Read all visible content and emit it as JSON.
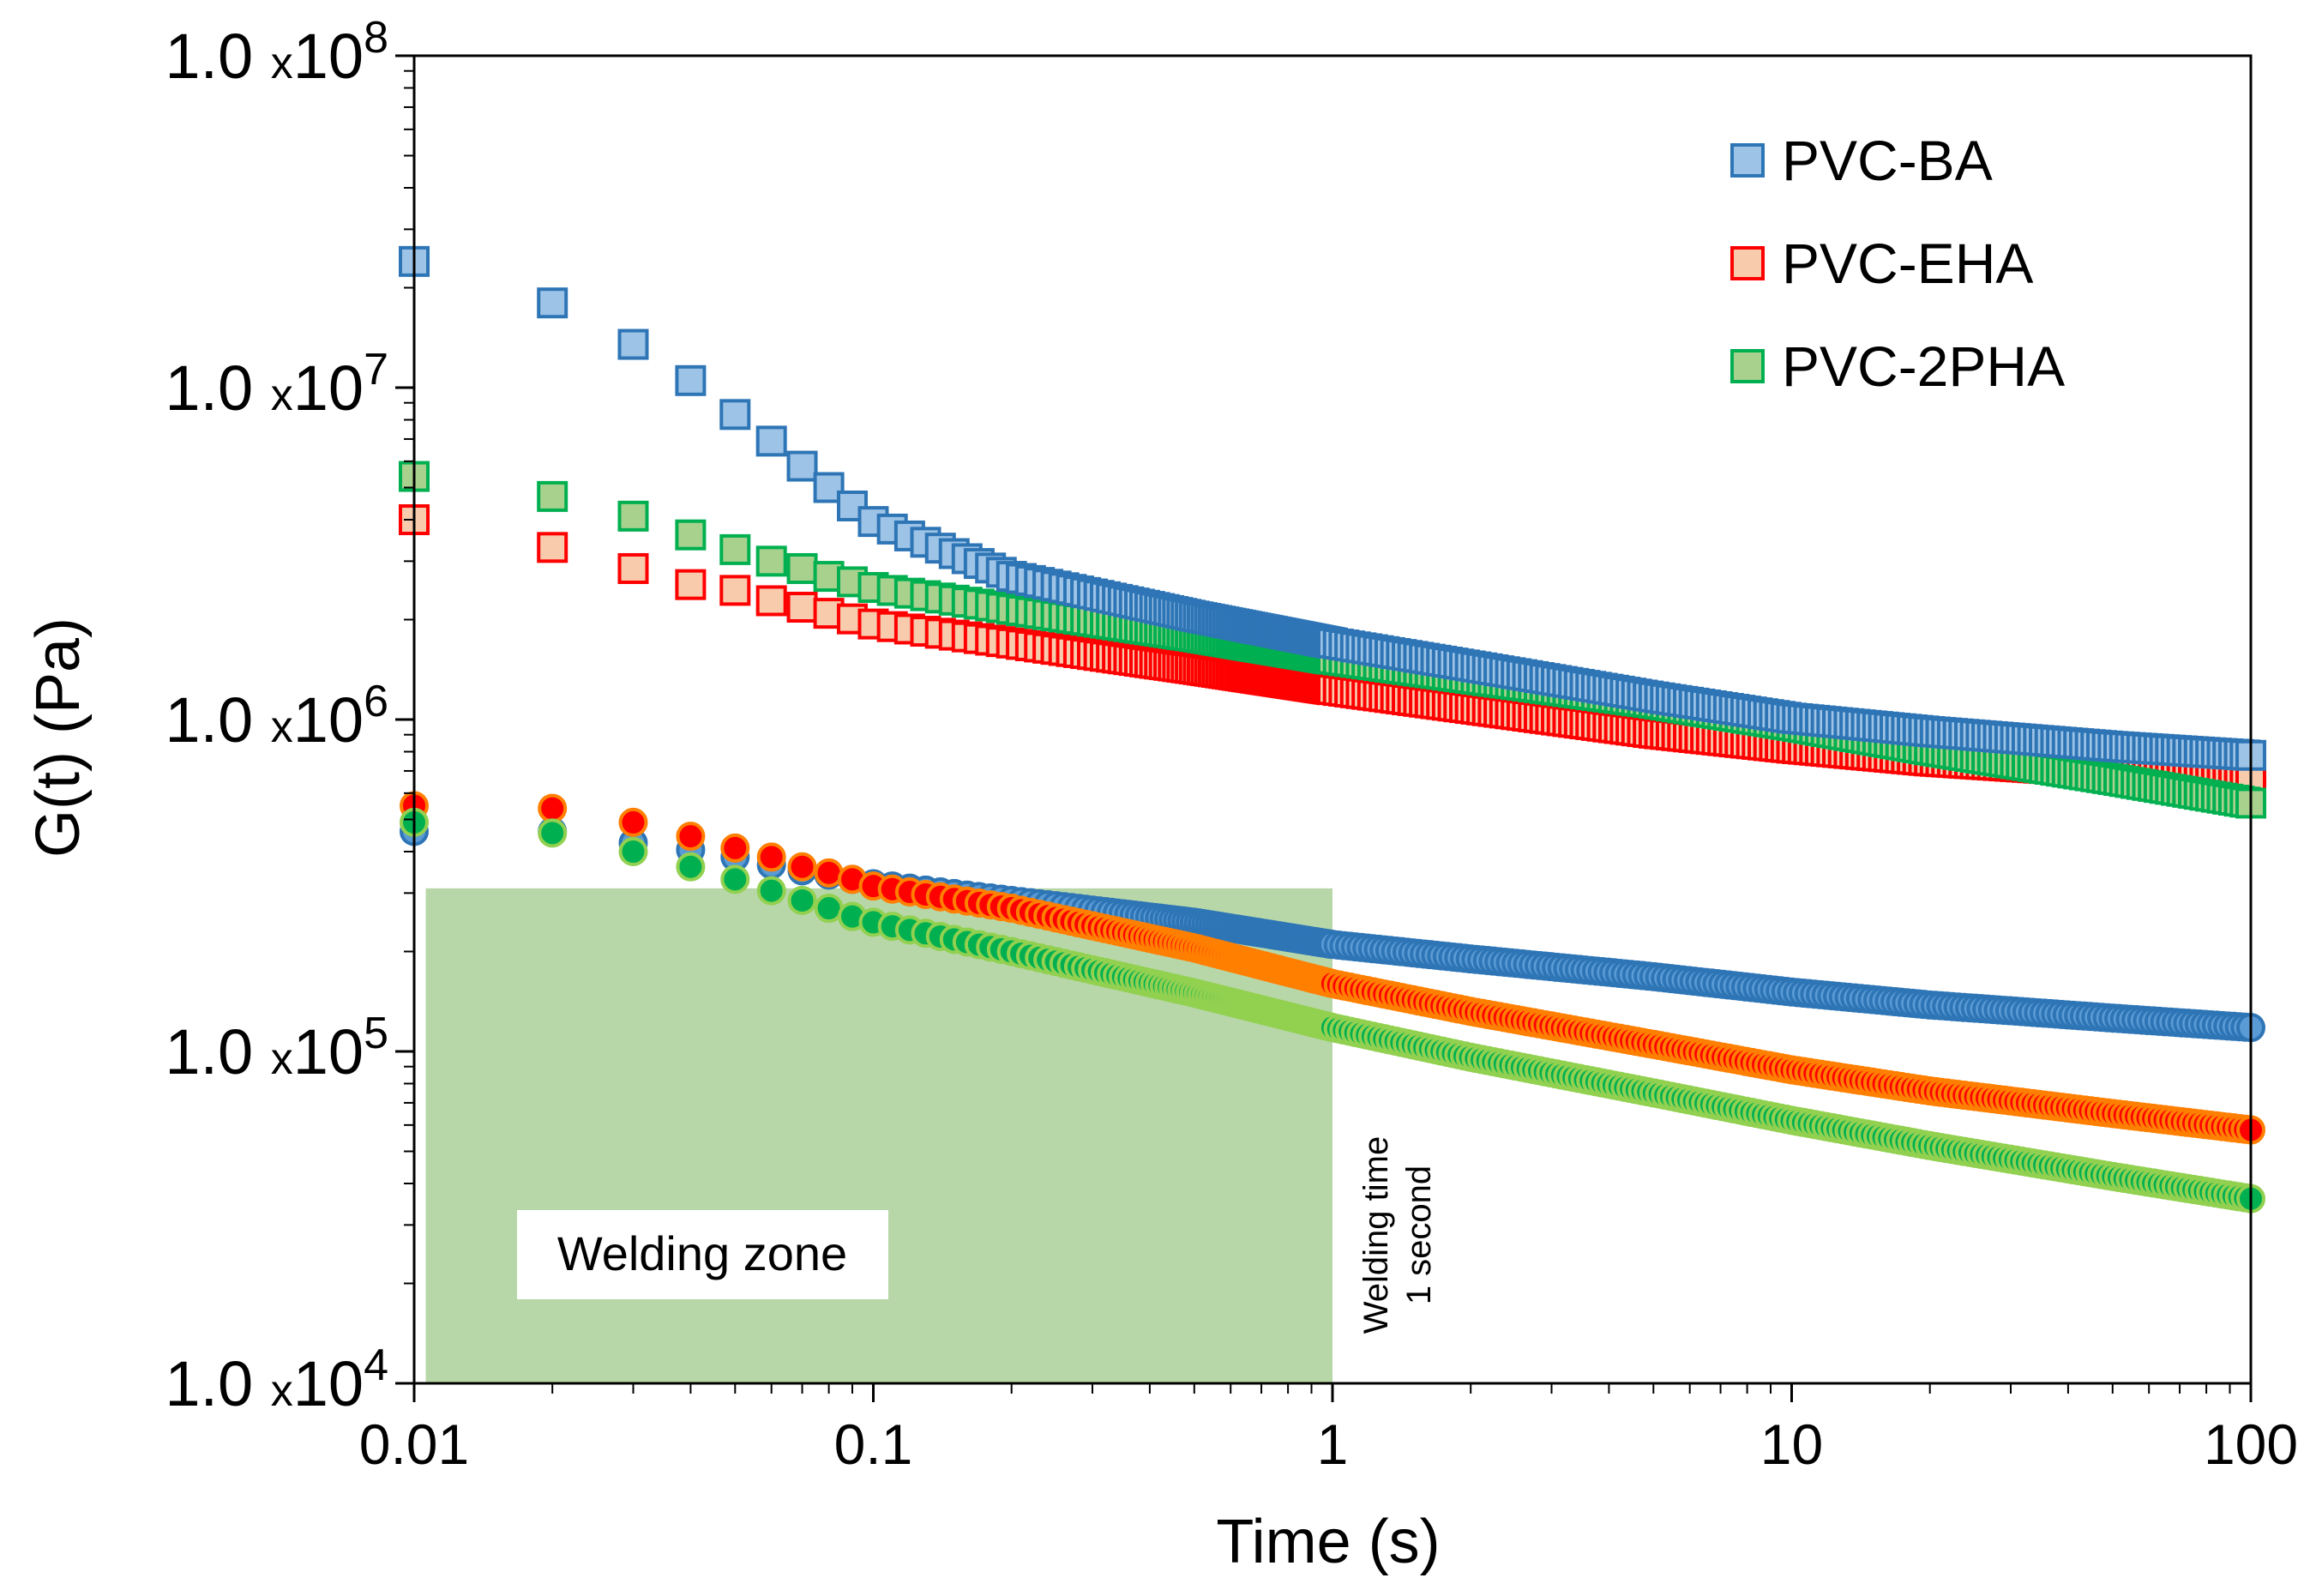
{
  "chart_data": {
    "type": "scatter",
    "xlabel": "Time (s)",
    "ylabel": "G(t) (Pa)",
    "xscale": "log",
    "yscale": "log",
    "xlim": [
      0.01,
      100
    ],
    "ylim": [
      10000,
      100000000
    ],
    "x_ticks": [
      {
        "value": 0.01,
        "label": "0.01"
      },
      {
        "value": 0.1,
        "label": "0.1"
      },
      {
        "value": 1,
        "label": "1"
      },
      {
        "value": 10,
        "label": "10"
      },
      {
        "value": 100,
        "label": "100"
      }
    ],
    "y_ticks": [
      {
        "value": 10000,
        "mantissa": "1.0",
        "x": "x",
        "base": "10",
        "exp": "4"
      },
      {
        "value": 100000,
        "mantissa": "1.0",
        "x": "x",
        "base": "10",
        "exp": "5"
      },
      {
        "value": 1000000,
        "mantissa": "1.0",
        "x": "x",
        "base": "10",
        "exp": "6"
      },
      {
        "value": 10000000,
        "mantissa": "1.0",
        "x": "x",
        "base": "10",
        "exp": "7"
      },
      {
        "value": 100000000,
        "mantissa": "1.0",
        "x": "x",
        "base": "10",
        "exp": "8"
      }
    ],
    "legend_position": "top-right",
    "series": [
      {
        "name": "PVC-BA",
        "marker": "square",
        "legend": true,
        "fill": "#9dc3e6",
        "stroke": "#2e75b6",
        "points": [
          [
            0.01,
            24000000
          ],
          [
            0.02,
            18000000
          ],
          [
            0.03,
            13500000
          ],
          [
            0.04,
            10500000
          ],
          [
            0.05,
            8300000
          ],
          [
            0.06,
            6900000
          ],
          [
            0.07,
            5800000
          ],
          [
            0.08,
            5000000
          ],
          [
            0.09,
            4400000
          ],
          [
            0.1,
            3950000
          ],
          [
            0.2,
            2700000
          ],
          [
            0.5,
            2050000
          ],
          [
            1,
            1700000
          ],
          [
            2,
            1450000
          ],
          [
            5,
            1170000
          ],
          [
            10,
            1010000
          ],
          [
            20,
            920000
          ],
          [
            50,
            830000
          ],
          [
            100,
            780000
          ]
        ]
      },
      {
        "name": "PVC-EHA",
        "marker": "square",
        "legend": true,
        "fill": "#f8cbad",
        "stroke": "#ff0000",
        "points": [
          [
            0.01,
            4000000
          ],
          [
            0.02,
            3300000
          ],
          [
            0.03,
            2850000
          ],
          [
            0.04,
            2550000
          ],
          [
            0.05,
            2450000
          ],
          [
            0.06,
            2280000
          ],
          [
            0.07,
            2180000
          ],
          [
            0.08,
            2090000
          ],
          [
            0.09,
            2010000
          ],
          [
            0.1,
            1940000
          ],
          [
            0.2,
            1700000
          ],
          [
            0.5,
            1420000
          ],
          [
            1,
            1230000
          ],
          [
            2,
            1080000
          ],
          [
            5,
            910000
          ],
          [
            10,
            820000
          ],
          [
            20,
            750000
          ],
          [
            50,
            690000
          ],
          [
            100,
            650000
          ]
        ]
      },
      {
        "name": "PVC-2PHA",
        "marker": "square",
        "legend": true,
        "fill": "#a9d18e",
        "stroke": "#00b050",
        "points": [
          [
            0.01,
            5400000
          ],
          [
            0.02,
            4700000
          ],
          [
            0.03,
            4100000
          ],
          [
            0.04,
            3600000
          ],
          [
            0.05,
            3250000
          ],
          [
            0.06,
            3000000
          ],
          [
            0.07,
            2850000
          ],
          [
            0.08,
            2700000
          ],
          [
            0.09,
            2600000
          ],
          [
            0.1,
            2500000
          ],
          [
            0.2,
            2150000
          ],
          [
            0.5,
            1780000
          ],
          [
            1,
            1520000
          ],
          [
            2,
            1330000
          ],
          [
            5,
            1120000
          ],
          [
            10,
            960000
          ],
          [
            20,
            810000
          ],
          [
            50,
            660000
          ],
          [
            100,
            560000
          ]
        ]
      },
      {
        "name": "PVC-BA (circles)",
        "marker": "circle",
        "legend": false,
        "fill": "#5b9bd5",
        "stroke": "#2e75b6",
        "points": [
          [
            0.01,
            460000
          ],
          [
            0.02,
            460000
          ],
          [
            0.03,
            425000
          ],
          [
            0.04,
            405000
          ],
          [
            0.05,
            385000
          ],
          [
            0.06,
            365000
          ],
          [
            0.07,
            350000
          ],
          [
            0.08,
            340000
          ],
          [
            0.09,
            330000
          ],
          [
            0.1,
            320000
          ],
          [
            0.2,
            285000
          ],
          [
            0.5,
            245000
          ],
          [
            1,
            210000
          ],
          [
            2,
            190000
          ],
          [
            5,
            168000
          ],
          [
            10,
            151000
          ],
          [
            20,
            138000
          ],
          [
            50,
            126000
          ],
          [
            100,
            118000
          ]
        ]
      },
      {
        "name": "PVC-EHA (circles)",
        "marker": "circle",
        "legend": false,
        "fill": "#ff0000",
        "stroke": "#ff7f00",
        "points": [
          [
            0.01,
            550000
          ],
          [
            0.02,
            540000
          ],
          [
            0.03,
            490000
          ],
          [
            0.04,
            445000
          ],
          [
            0.05,
            410000
          ],
          [
            0.06,
            385000
          ],
          [
            0.07,
            360000
          ],
          [
            0.08,
            345000
          ],
          [
            0.09,
            330000
          ],
          [
            0.1,
            315000
          ],
          [
            0.2,
            270000
          ],
          [
            0.5,
            205000
          ],
          [
            1,
            160000
          ],
          [
            2,
            132000
          ],
          [
            5,
            105000
          ],
          [
            10,
            88000
          ],
          [
            20,
            76000
          ],
          [
            50,
            65000
          ],
          [
            100,
            58000
          ]
        ]
      },
      {
        "name": "PVC-2PHA (circles)",
        "marker": "circle",
        "legend": false,
        "fill": "#00b050",
        "stroke": "#92d050",
        "points": [
          [
            0.01,
            490000
          ],
          [
            0.02,
            455000
          ],
          [
            0.03,
            400000
          ],
          [
            0.04,
            360000
          ],
          [
            0.05,
            330000
          ],
          [
            0.06,
            305000
          ],
          [
            0.07,
            285000
          ],
          [
            0.08,
            270000
          ],
          [
            0.09,
            255000
          ],
          [
            0.1,
            245000
          ],
          [
            0.2,
            200000
          ],
          [
            0.5,
            150000
          ],
          [
            1,
            118000
          ],
          [
            2,
            96000
          ],
          [
            5,
            75000
          ],
          [
            10,
            62000
          ],
          [
            20,
            52000
          ],
          [
            50,
            42000
          ],
          [
            100,
            36000
          ]
        ]
      }
    ],
    "annotations": {
      "welding_zone": {
        "label": "Welding zone",
        "x_range": [
          0.0106,
          1
        ],
        "y_top": 310000,
        "fill": "#b7d7a8"
      },
      "welding_time": {
        "line1": "Welding time",
        "line2": "1 second",
        "x": 1
      }
    }
  }
}
